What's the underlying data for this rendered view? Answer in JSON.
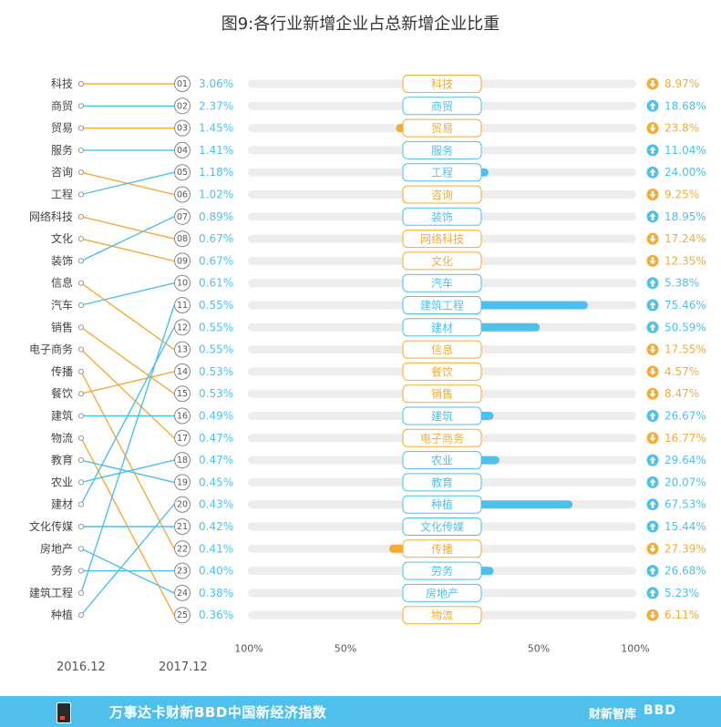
{
  "title": "图9:各行业新增企业占总新增企业比重",
  "years": {
    "left": "2016.12",
    "right": "2017.12"
  },
  "footer": {
    "text": "万事达卡财新BBD中国新经济指数",
    "brand1": "财新智库",
    "brand2": "BBD"
  },
  "colors": {
    "up": "#4fc0ec",
    "down": "#f5ab35",
    "track": "#ededed",
    "dot": "#999999"
  },
  "chart_data": {
    "type": "bar",
    "left_ranking_2016": [
      "科技",
      "商贸",
      "贸易",
      "服务",
      "咨询",
      "工程",
      "网络科技",
      "文化",
      "装饰",
      "信息",
      "汽车",
      "销售",
      "电子商务",
      "传播",
      "餐饮",
      "建筑",
      "物流",
      "教育",
      "农业",
      "建材",
      "文化传媒",
      "房地产",
      "劳务",
      "建筑工程",
      "种植"
    ],
    "rows": [
      {
        "rank": "01",
        "share": "3.06%",
        "industry": "科技",
        "change": -8.97,
        "label": "8.97%",
        "dir": "down"
      },
      {
        "rank": "02",
        "share": "2.37%",
        "industry": "商贸",
        "change": 18.68,
        "label": "18.68%",
        "dir": "up"
      },
      {
        "rank": "03",
        "share": "1.45%",
        "industry": "贸易",
        "change": -23.8,
        "label": "23.8%",
        "dir": "down"
      },
      {
        "rank": "04",
        "share": "1.41%",
        "industry": "服务",
        "change": 11.04,
        "label": "11.04%",
        "dir": "up"
      },
      {
        "rank": "05",
        "share": "1.18%",
        "industry": "工程",
        "change": 24.0,
        "label": "24.00%",
        "dir": "up"
      },
      {
        "rank": "06",
        "share": "1.02%",
        "industry": "咨询",
        "change": -9.25,
        "label": "9.25%",
        "dir": "down"
      },
      {
        "rank": "07",
        "share": "0.89%",
        "industry": "装饰",
        "change": 18.95,
        "label": "18.95%",
        "dir": "up"
      },
      {
        "rank": "08",
        "share": "0.67%",
        "industry": "网络科技",
        "change": -17.24,
        "label": "17.24%",
        "dir": "down"
      },
      {
        "rank": "09",
        "share": "0.67%",
        "industry": "文化",
        "change": -12.35,
        "label": "12.35%",
        "dir": "down"
      },
      {
        "rank": "10",
        "share": "0.61%",
        "industry": "汽车",
        "change": 5.38,
        "label": "5.38%",
        "dir": "up"
      },
      {
        "rank": "11",
        "share": "0.55%",
        "industry": "建筑工程",
        "change": 75.46,
        "label": "75.46%",
        "dir": "up"
      },
      {
        "rank": "12",
        "share": "0.55%",
        "industry": "建材",
        "change": 50.59,
        "label": "50.59%",
        "dir": "up"
      },
      {
        "rank": "13",
        "share": "0.55%",
        "industry": "信息",
        "change": -17.55,
        "label": "17.55%",
        "dir": "down"
      },
      {
        "rank": "14",
        "share": "0.53%",
        "industry": "餐饮",
        "change": -4.57,
        "label": "4.57%",
        "dir": "down"
      },
      {
        "rank": "15",
        "share": "0.53%",
        "industry": "销售",
        "change": -8.47,
        "label": "8.47%",
        "dir": "down"
      },
      {
        "rank": "16",
        "share": "0.49%",
        "industry": "建筑",
        "change": 26.67,
        "label": "26.67%",
        "dir": "up"
      },
      {
        "rank": "17",
        "share": "0.47%",
        "industry": "电子商务",
        "change": -16.77,
        "label": "16.77%",
        "dir": "down"
      },
      {
        "rank": "18",
        "share": "0.47%",
        "industry": "农业",
        "change": 29.64,
        "label": "29.64%",
        "dir": "up"
      },
      {
        "rank": "19",
        "share": "0.45%",
        "industry": "教育",
        "change": 20.07,
        "label": "20.07%",
        "dir": "up"
      },
      {
        "rank": "20",
        "share": "0.43%",
        "industry": "种植",
        "change": 67.53,
        "label": "67.53%",
        "dir": "up"
      },
      {
        "rank": "21",
        "share": "0.42%",
        "industry": "文化传媒",
        "change": 15.44,
        "label": "15.44%",
        "dir": "up"
      },
      {
        "rank": "22",
        "share": "0.41%",
        "industry": "传播",
        "change": -27.39,
        "label": "27.39%",
        "dir": "down"
      },
      {
        "rank": "23",
        "share": "0.40%",
        "industry": "劳务",
        "change": 26.68,
        "label": "26.68%",
        "dir": "up"
      },
      {
        "rank": "24",
        "share": "0.38%",
        "industry": "房地产",
        "change": 5.23,
        "label": "5.23%",
        "dir": "up"
      },
      {
        "rank": "25",
        "share": "0.36%",
        "industry": "物流",
        "change": -6.11,
        "label": "6.11%",
        "dir": "down"
      }
    ],
    "axis_ticks": [
      "100%",
      "50%",
      "50%",
      "100%"
    ],
    "xlim": [
      -100,
      100
    ]
  }
}
